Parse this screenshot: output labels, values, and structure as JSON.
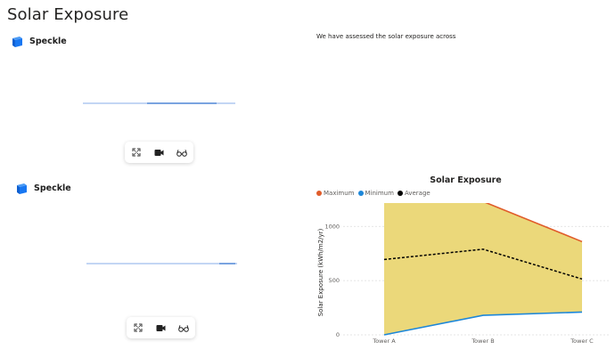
{
  "page": {
    "title": "Solar Exposure"
  },
  "viewers": [
    {
      "brand": "Speckle",
      "progress": 0.5
    },
    {
      "brand": "Speckle",
      "progress": 0.9
    }
  ],
  "toolbar_icons": [
    "fullscreen-icon",
    "camera-icon",
    "glasses-icon"
  ],
  "text_panel": {
    "text": "We have assessed the solar exposure across"
  },
  "colors": {
    "maximum": "#e05c2a",
    "minimum": "#1d87d9",
    "average": "#000000",
    "band_fill": "#ebd87a",
    "speckle_blue": "#1877f2"
  },
  "chart_data": {
    "type": "area",
    "title": "Solar Exposure",
    "ylabel": "Solar Exposure (kWh/m2/yr)",
    "xlabel": "",
    "categories": [
      "Tower A",
      "Tower B",
      "Tower C"
    ],
    "yticks": [
      "0",
      "500",
      "1000"
    ],
    "ylim": [
      0,
      1150
    ],
    "grid": true,
    "legend_position": "top-left",
    "series": [
      {
        "name": "Maximum",
        "values": [
          1270,
          1230,
          860
        ]
      },
      {
        "name": "Minimum",
        "values": [
          0,
          180,
          210
        ]
      },
      {
        "name": "Average",
        "values": [
          695,
          790,
          515
        ]
      }
    ]
  }
}
